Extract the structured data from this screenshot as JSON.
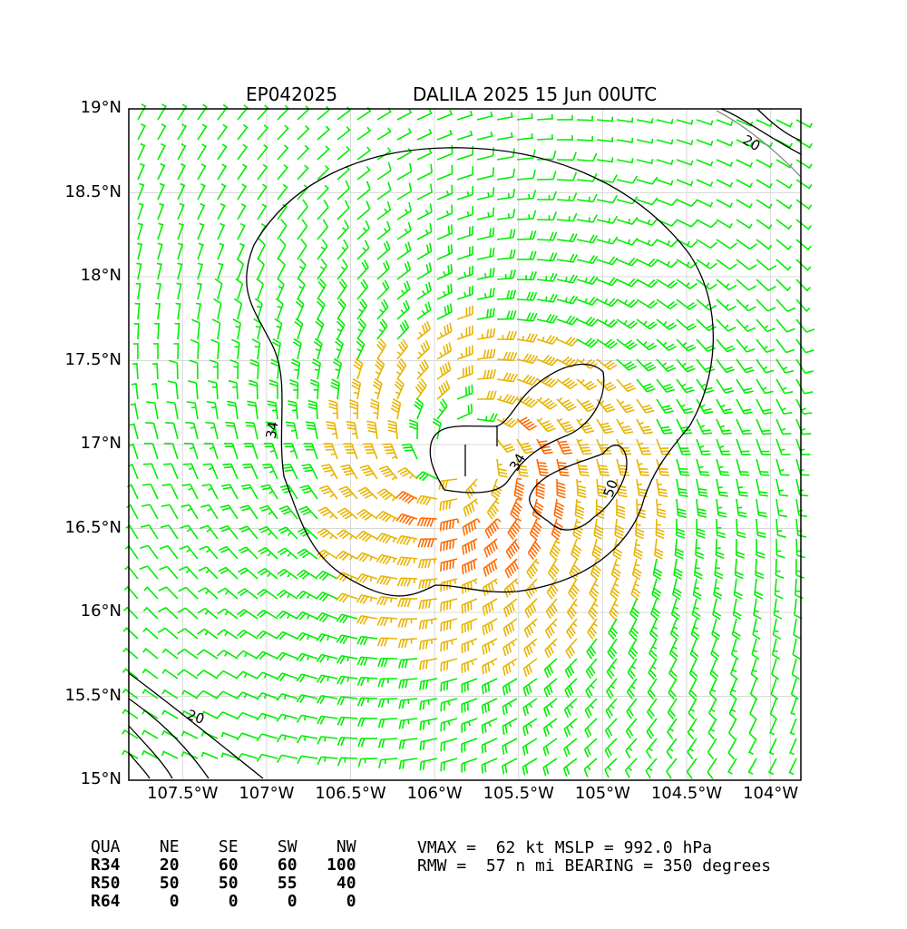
{
  "title": {
    "storm_id": "EP042025",
    "name_time": "DALILA 2025 15 Jun 00UTC"
  },
  "axes": {
    "lat_labels": [
      "19°N",
      "18.5°N",
      "18°N",
      "17.5°N",
      "17°N",
      "16.5°N",
      "16°N",
      "15.5°N",
      "15°N"
    ],
    "lon_labels": [
      "107.5°W",
      "107°W",
      "106.5°W",
      "106°W",
      "105.5°W",
      "105°W",
      "104.5°W",
      "104°W"
    ],
    "lat_range": [
      15.0,
      19.0
    ],
    "lon_range": [
      -107.82,
      -103.82
    ],
    "grid": true
  },
  "center": {
    "lat": 16.95,
    "lon": -105.84
  },
  "contours": {
    "labels": [
      "34",
      "34",
      "50",
      "20",
      "20"
    ]
  },
  "wind_colors": {
    "below_34": "#00ee00",
    "34_to_50": "#e8b400",
    "50_to_64": "#ff6a00"
  },
  "radii_table": {
    "header": [
      "QUA",
      "NE",
      "SE",
      "SW",
      "NW"
    ],
    "rows": [
      [
        "R34",
        "20",
        "60",
        "60",
        "100"
      ],
      [
        "R50",
        "50",
        "50",
        "55",
        "40"
      ],
      [
        "R64",
        "0",
        "0",
        "0",
        "0"
      ]
    ]
  },
  "info": {
    "line1": "VMAX =  62 kt MSLP = 992.0 hPa",
    "line2": "RMW =  57 n mi BEARING = 350 degrees"
  }
}
